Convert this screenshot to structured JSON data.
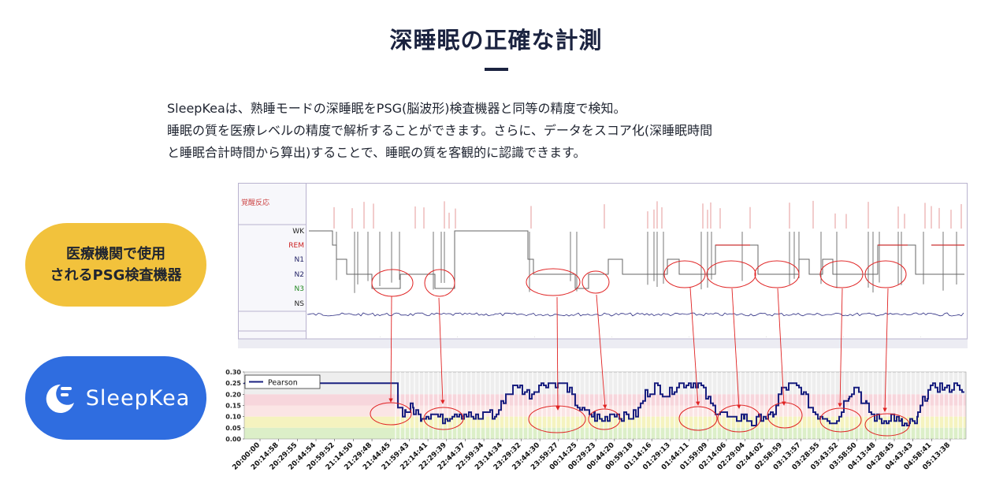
{
  "header": {
    "title": "深睡眠の正確な計測"
  },
  "description": {
    "lines": [
      "SleepKeaは、熟睡モードの深睡眠をPSG(脳波形)検査機器と同等の精度で検知。",
      "睡眠の質を医療レベルの精度で解析することができます。さらに、データをスコア化(深睡眠時間",
      "と睡眠合計時間から算出)することで、睡眠の質を客観的に認識できます。"
    ]
  },
  "medical_pill": {
    "line1": "医療機関で使用",
    "line2": "されるPSG検査機器",
    "color": "#f2c23c"
  },
  "sleepkea_pill": {
    "name": "SleepKea",
    "color": "#2f6de0",
    "icon": "moon-logo-icon"
  },
  "psg_chart": {
    "arousal_label": "覚醒反応",
    "stage_labels": [
      "WK",
      "REM",
      "N1",
      "N2",
      "N3",
      "NS"
    ],
    "stage_colors": [
      "#222222",
      "#cc2222",
      "#222266",
      "#222266",
      "#228822",
      "#222222"
    ]
  },
  "chart_data": {
    "type": "line",
    "legend": [
      "Pearson"
    ],
    "legend_position": "top-left",
    "ylim": [
      0,
      0.3
    ],
    "yticks": [
      "0.30",
      "0.25",
      "0.20",
      "0.15",
      "0.10",
      "0.05",
      "0.00"
    ],
    "x_tick_labels": [
      "20:00:00",
      "20:14:58",
      "20:29:55",
      "20:44:54",
      "20:59:52",
      "21:14:50",
      "21:29:48",
      "21:44:45",
      "21:59:43",
      "22:14:41",
      "22:29:39",
      "22:44:37",
      "22:59:34",
      "23:14:34",
      "23:29:32",
      "23:44:30",
      "23:59:27",
      "00:14:25",
      "00:29:23",
      "00:44:20",
      "00:59:18",
      "01:14:16",
      "01:29:13",
      "01:44:11",
      "01:59:09",
      "02:14:06",
      "02:29:04",
      "02:44:02",
      "02:58:59",
      "03:13:57",
      "03:28:55",
      "03:43:52",
      "03:58:50",
      "04:13:48",
      "04:28:45",
      "04:43:43",
      "04:58:41",
      "05:13:38"
    ],
    "bands": [
      {
        "from": 0.2,
        "to": 0.3,
        "color": "#eeeeee"
      },
      {
        "from": 0.15,
        "to": 0.2,
        "color": "#f7d6dc"
      },
      {
        "from": 0.1,
        "to": 0.15,
        "color": "#fbe5e5"
      },
      {
        "from": 0.05,
        "to": 0.1,
        "color": "#f5f3bf"
      },
      {
        "from": 0.0,
        "to": 0.05,
        "color": "#dcefc8"
      }
    ],
    "line_color": "#1a2080"
  }
}
